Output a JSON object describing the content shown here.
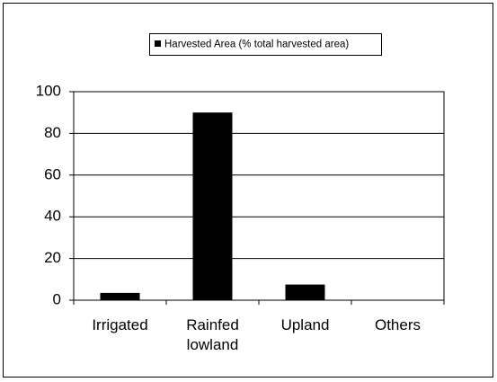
{
  "chart_data": {
    "type": "bar",
    "categories": [
      "Irrigated",
      "Rainfed lowland",
      "Upland",
      "Others"
    ],
    "series": [
      {
        "name": "Harvested Area (% total harvested area)",
        "color": "#000000",
        "values": [
          3.5,
          90,
          7.5,
          0
        ]
      }
    ],
    "ylim": [
      0,
      100
    ],
    "yticks": [
      0,
      20,
      40,
      60,
      80,
      100
    ],
    "grid": true,
    "legend": "top"
  }
}
